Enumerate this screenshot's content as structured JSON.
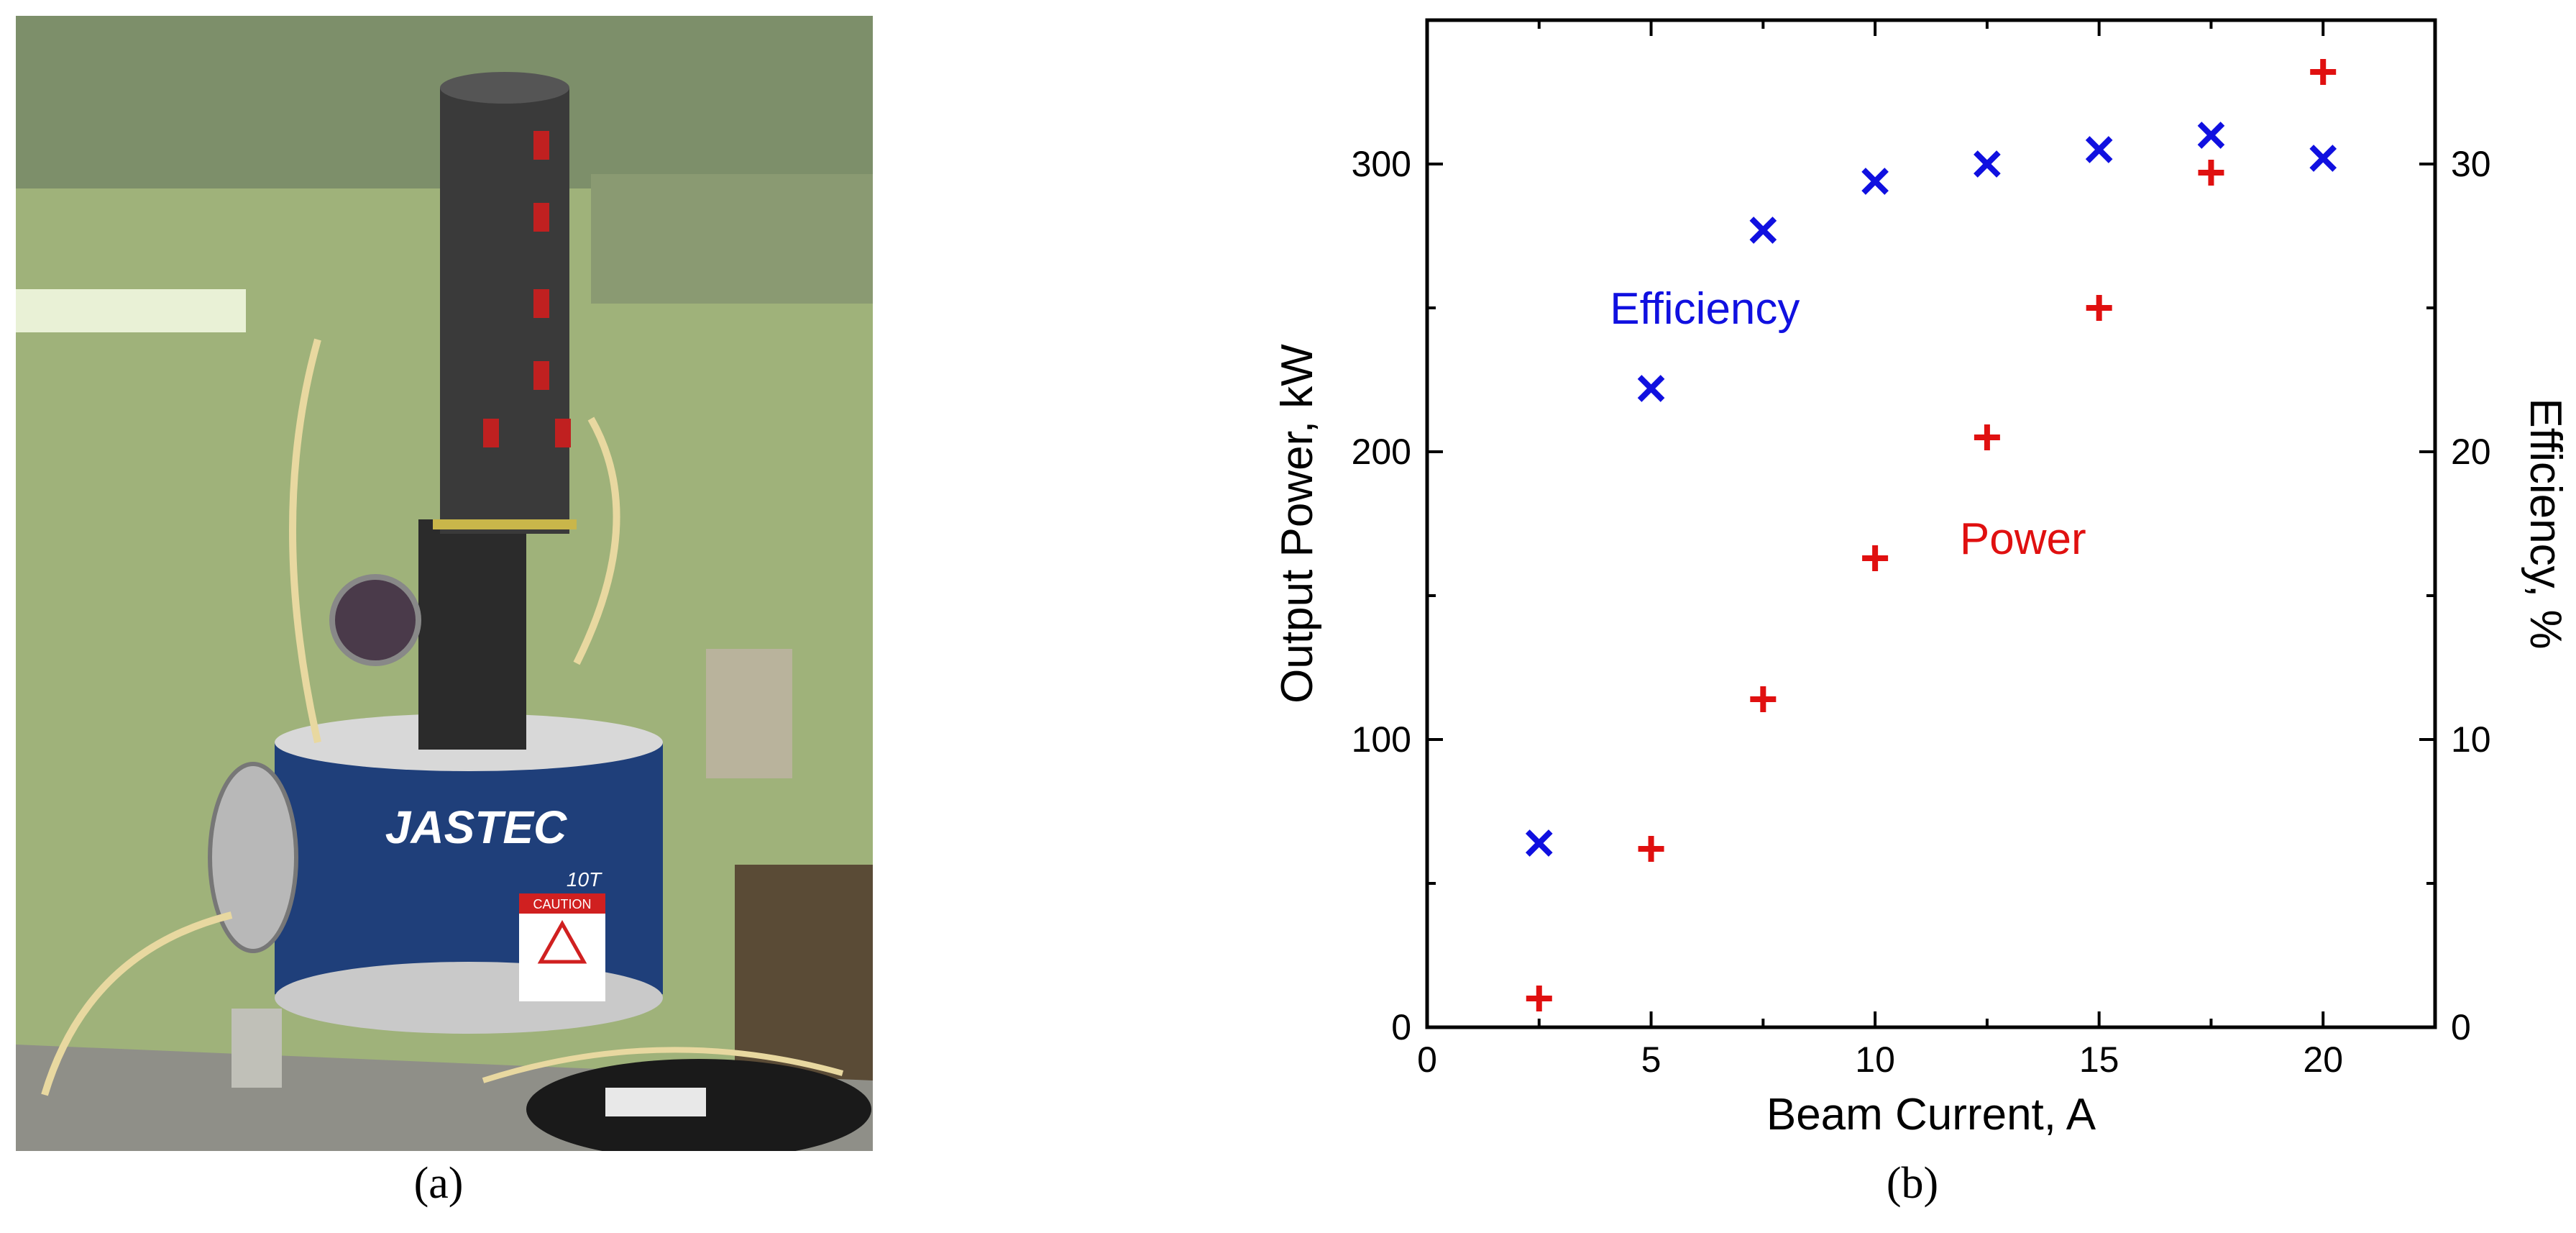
{
  "panels": {
    "a": {
      "caption": "(a)",
      "photo_label": "JASTEC",
      "photo_sublabel": "10T",
      "photo_warning": "CAUTION"
    },
    "b": {
      "caption": "(b)"
    }
  },
  "colors": {
    "efficiency": "#1010e0",
    "power": "#e01010",
    "axis": "#000000"
  },
  "chart_data": {
    "type": "scatter",
    "title": "",
    "xlabel": "Beam Current, A",
    "ylabel": "Output Power, kW",
    "y2label": "Efficiency, %",
    "xlim": [
      0,
      22.5
    ],
    "ylim": [
      0,
      350
    ],
    "y2lim": [
      0,
      35
    ],
    "xticks": [
      0,
      5,
      10,
      15,
      20
    ],
    "yticks": [
      0,
      100,
      200,
      300
    ],
    "y2ticks": [
      0,
      10,
      20,
      30
    ],
    "grid": false,
    "series": [
      {
        "name": "Efficiency",
        "axis": "right",
        "marker": "x",
        "x": [
          2.5,
          5,
          7.5,
          10,
          12.5,
          15,
          17.5,
          20
        ],
        "y": [
          6.4,
          22.2,
          27.7,
          29.4,
          30.0,
          30.5,
          31.0,
          30.2
        ]
      },
      {
        "name": "Power",
        "axis": "left",
        "marker": "+",
        "x": [
          2.5,
          5,
          7.5,
          10,
          12.5,
          15,
          17.5,
          20
        ],
        "y": [
          10,
          62,
          114,
          163,
          205,
          250,
          297,
          332
        ]
      }
    ],
    "annotations": [
      {
        "text": "Efficiency",
        "series": "Efficiency"
      },
      {
        "text": "Power",
        "series": "Power"
      }
    ]
  }
}
